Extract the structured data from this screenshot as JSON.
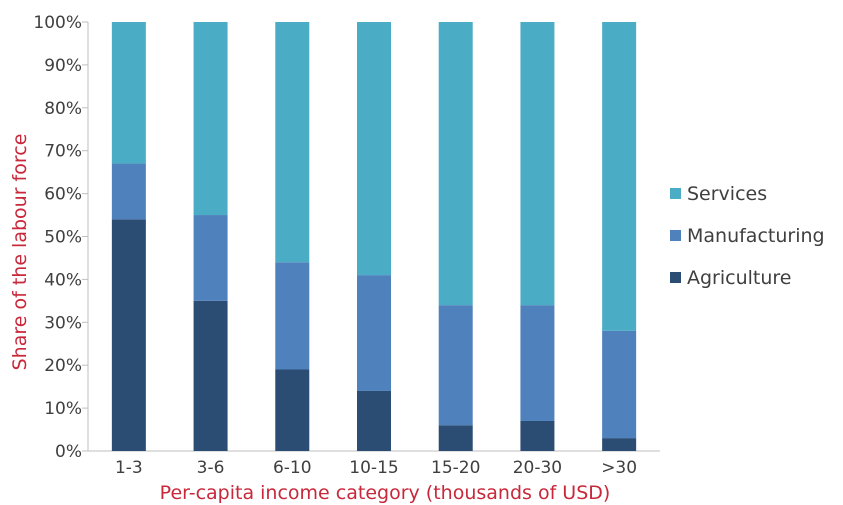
{
  "chart_data": {
    "type": "bar",
    "stacked": true,
    "categories": [
      "1-3",
      "3-6",
      "6-10",
      "10-15",
      "15-20",
      "20-30",
      ">30"
    ],
    "series": [
      {
        "name": "Agriculture",
        "color": "#2b4c73",
        "values": [
          54,
          35,
          19,
          14,
          6,
          7,
          3
        ]
      },
      {
        "name": "Manufacturing",
        "color": "#4f81bd",
        "values": [
          13,
          20,
          25,
          27,
          28,
          27,
          25
        ]
      },
      {
        "name": "Services",
        "color": "#4bacc6",
        "values": [
          33,
          45,
          56,
          59,
          66,
          66,
          72
        ]
      }
    ],
    "xlabel": "Per-capita income category (thousands of USD)",
    "ylabel": "Share of the labour force",
    "ylim": [
      0,
      100
    ],
    "yticks": [
      "0%",
      "10%",
      "20%",
      "30%",
      "40%",
      "50%",
      "60%",
      "70%",
      "80%",
      "90%",
      "100%"
    ],
    "legend": {
      "position": "right",
      "order": [
        "Services",
        "Manufacturing",
        "Agriculture"
      ]
    },
    "axis_title_color": "#c8283a",
    "grid": false
  }
}
